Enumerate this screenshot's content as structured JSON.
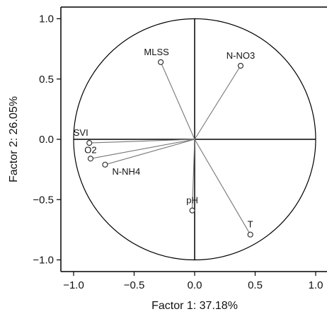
{
  "chart_data": {
    "type": "scatter",
    "subtype": "pca-correlation-circle",
    "xlabel": "Factor 1: 37.18%",
    "ylabel": "Factor 2: 26.05%",
    "xlim": [
      -1.05,
      1.05
    ],
    "ylim": [
      -1.1,
      1.1
    ],
    "x_ticks": [
      -1.0,
      -0.5,
      0.0,
      0.5,
      1.0
    ],
    "y_ticks": [
      -1.0,
      -0.5,
      0.0,
      0.5,
      1.0
    ],
    "x_tick_labels": [
      "−1.0",
      "−0.5",
      "0.0",
      "0.5",
      "1.0"
    ],
    "y_tick_labels": [
      "−1.0",
      "−0.5",
      "0.0",
      "0.5",
      "1.0"
    ],
    "unit_circle": true,
    "grid": false,
    "points": [
      {
        "label": "MLSS",
        "x": -0.28,
        "y": 0.64
      },
      {
        "label": "N-NO3",
        "x": 0.38,
        "y": 0.61
      },
      {
        "label": "SVI",
        "x": -0.87,
        "y": -0.03
      },
      {
        "label": "O2",
        "x": -0.86,
        "y": -0.16
      },
      {
        "label": "N-NH4",
        "x": -0.74,
        "y": -0.21
      },
      {
        "label": "pH",
        "x": -0.02,
        "y": -0.59
      },
      {
        "label": "T",
        "x": 0.46,
        "y": -0.79
      }
    ],
    "colors": {
      "marker": "#333333",
      "vector": "#777777",
      "axes": "#000000"
    }
  }
}
